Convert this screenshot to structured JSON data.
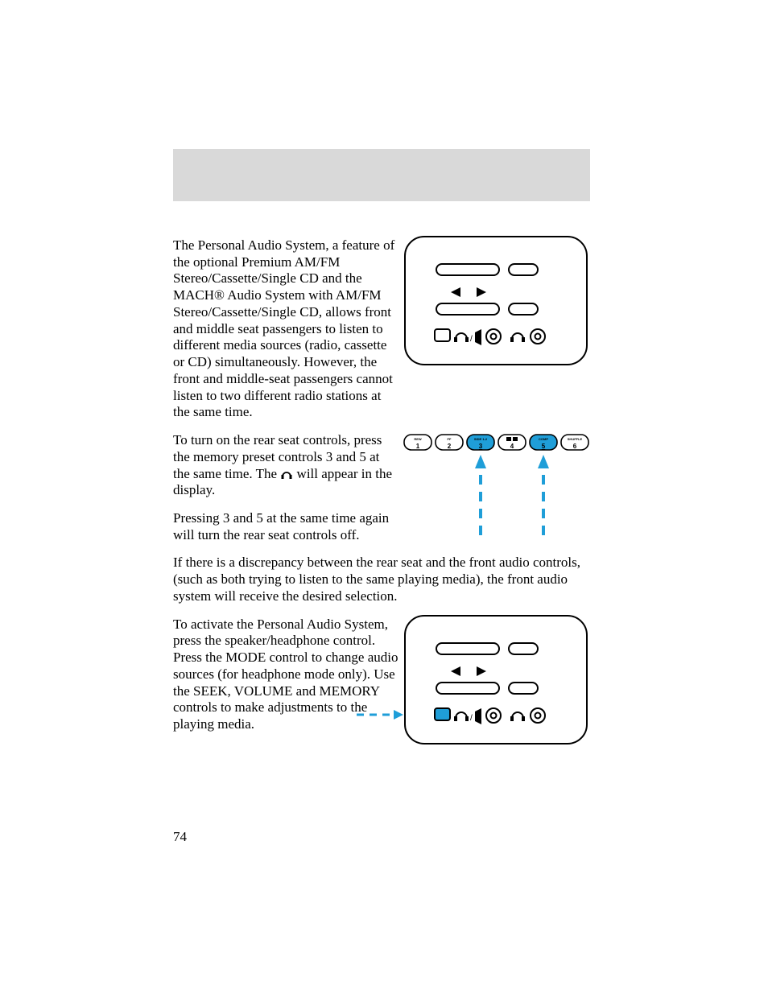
{
  "page_number": "74",
  "paragraphs": {
    "p1": "The Personal Audio System, a feature of the optional Premium AM/FM Stereo/Cassette/Single CD and the MACH® Audio System with AM/FM Stereo/Cassette/Single CD, allows front and middle seat passengers to listen to different media sources (radio, cassette or CD) simultaneously. However, the front and middle-seat passengers cannot listen to two different radio stations at the same time.",
    "p2a": "To turn on the rear seat controls, press the memory preset controls 3 and 5 at the same time. The ",
    "p2b": " will appear in the display.",
    "p3": "Pressing 3 and 5 at the same time again will turn the rear seat controls off.",
    "p4": "If there is a discrepancy between the rear seat and the front audio controls, (such as both trying to listen to the same playing media), the front audio system will receive the desired selection.",
    "p5": "To activate the Personal Audio System, press the speaker/headphone control. Press the MODE control to change audio sources (for headphone mode only). Use the SEEK, VOLUME and MEMORY controls to make adjustments to the playing media."
  },
  "presets": {
    "buttons": [
      {
        "top": "REW",
        "num": "1"
      },
      {
        "top": "FF",
        "num": "2"
      },
      {
        "top": "SIDE 1-2",
        "num": "3"
      },
      {
        "top": "",
        "num": "4",
        "dolby": true
      },
      {
        "top": "COMP",
        "num": "5"
      },
      {
        "top": "SHUFFLE",
        "num": "6"
      }
    ],
    "highlight_indices": [
      2,
      4
    ],
    "accent_color": "#1f9ed8",
    "stroke": "#000000",
    "font_size_top": 4,
    "font_size_num": 8
  },
  "panel": {
    "stroke": "#000000",
    "fill": "#ffffff",
    "accent_color": "#1f9ed8"
  }
}
